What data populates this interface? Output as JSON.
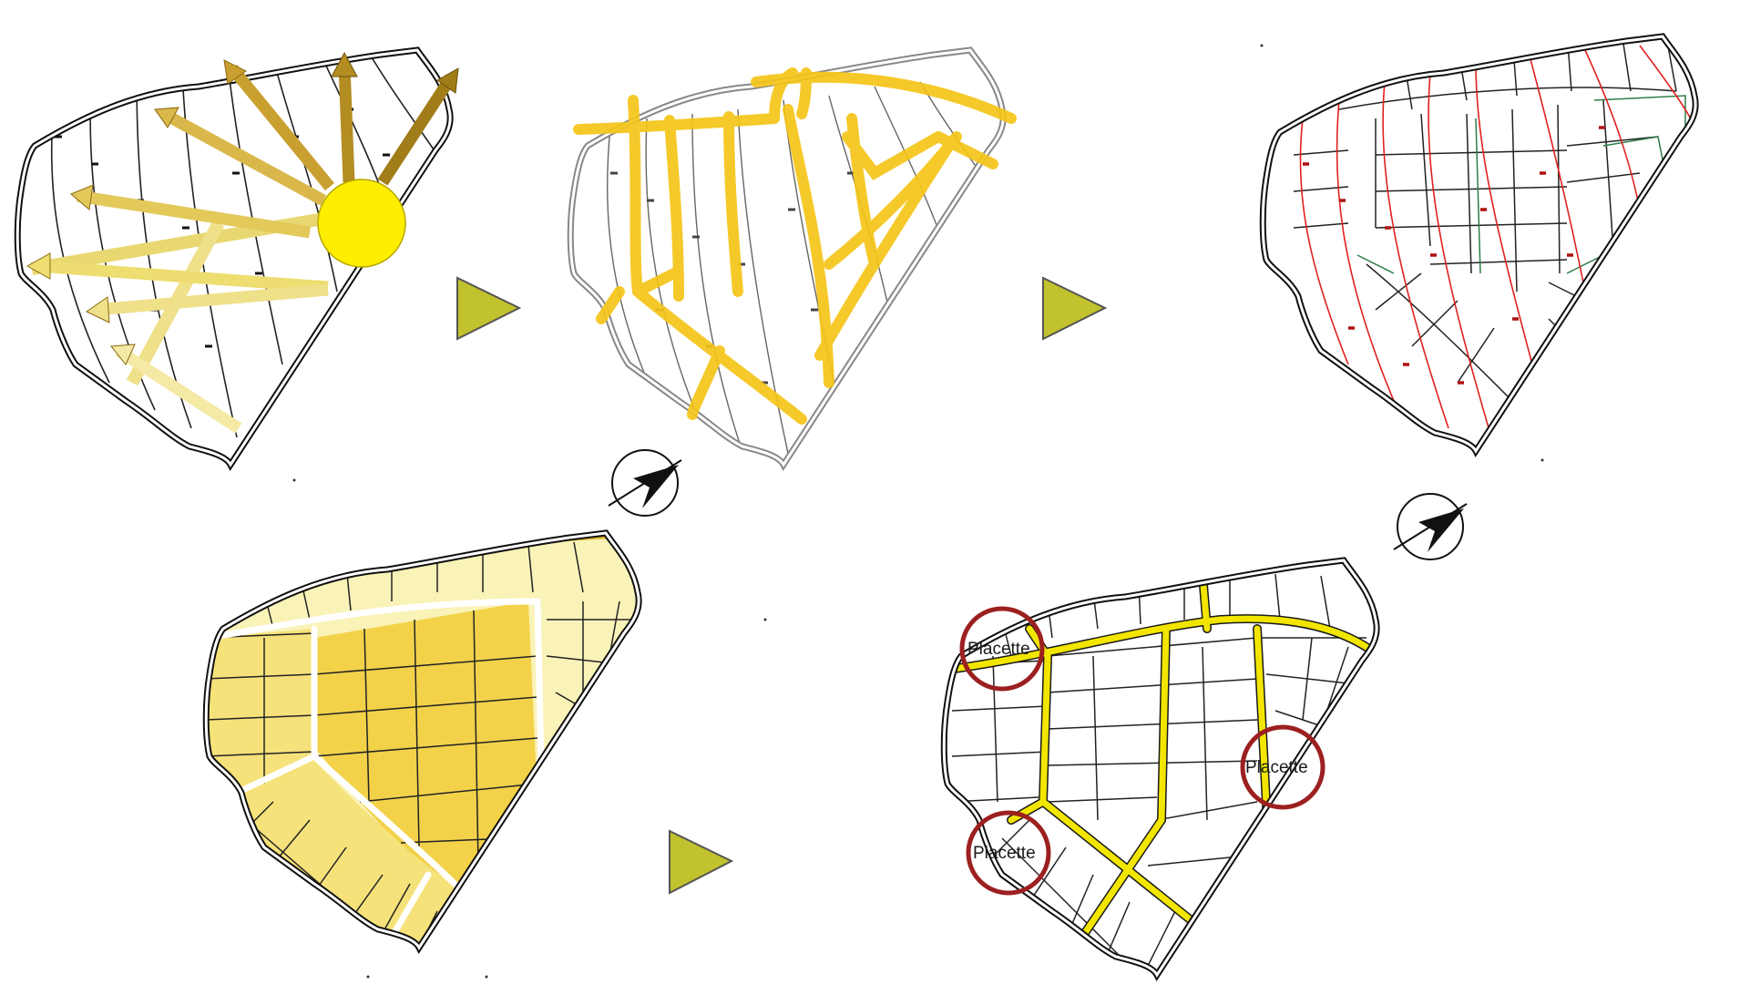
{
  "colors": {
    "sun": "#ffee00",
    "sun_ray_dark": "#a07d18",
    "sun_ray_light": "#eedd70",
    "road_yellow": "#f5c518",
    "contour_red": "#e02020",
    "path_green": "#2e7d4a",
    "plot_yellow_dark": "#f3d24a",
    "plot_yellow_mid": "#f6e27a",
    "plot_yellow_light": "#faf3b8",
    "plot_ochre": "#e0b62e",
    "arrow_fill": "#c2c22e",
    "circle_red": "#9c2020",
    "outline": "#111111"
  },
  "panels": [
    {
      "id": "solar-analysis",
      "label": ""
    },
    {
      "id": "road-network",
      "label": ""
    },
    {
      "id": "parcel-grid",
      "label": ""
    },
    {
      "id": "sunlight-zoning",
      "label": ""
    },
    {
      "id": "final-layout",
      "label": ""
    }
  ],
  "placettes": [
    {
      "label": "Placette"
    },
    {
      "label": "Placette"
    },
    {
      "label": "Placette"
    }
  ],
  "icons": [
    "north-arrow-icon",
    "step-arrow-icon",
    "sun-icon"
  ]
}
